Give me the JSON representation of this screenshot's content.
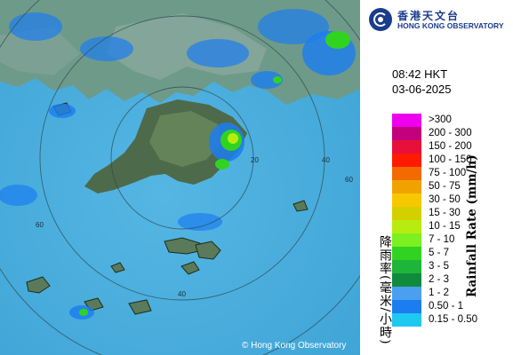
{
  "header": {
    "logo_zh": "香港天文台",
    "logo_en": "HONG KONG OBSERVATORY"
  },
  "timestamp": {
    "time": "08:42 HKT",
    "date": "03-06-2025"
  },
  "legend": {
    "title_zh": "降雨率(毫米/小時)",
    "title_en": "Rainfall Rate (mm/h)",
    "items": [
      {
        "label": ">300",
        "color": "#ee00ee"
      },
      {
        "label": "200 - 300",
        "color": "#c2007e"
      },
      {
        "label": "150 - 200",
        "color": "#e8103a"
      },
      {
        "label": "100 - 150",
        "color": "#ff1a00"
      },
      {
        "label": "75 - 100",
        "color": "#f26a00"
      },
      {
        "label": "50 - 75",
        "color": "#f0a300"
      },
      {
        "label": "30 - 50",
        "color": "#f7c800"
      },
      {
        "label": "15 - 30",
        "color": "#d4d000"
      },
      {
        "label": "10 - 15",
        "color": "#b8ec10"
      },
      {
        "label": "7 - 10",
        "color": "#7cf020"
      },
      {
        "label": "5 - 7",
        "color": "#30d420"
      },
      {
        "label": "3 - 5",
        "color": "#1fb43a"
      },
      {
        "label": "2 - 3",
        "color": "#128a3e"
      },
      {
        "label": "1 - 2",
        "color": "#4a9ff0"
      },
      {
        "label": "0.50 - 1",
        "color": "#1c7df0"
      },
      {
        "label": "0.15 - 0.50",
        "color": "#1fc8f0"
      }
    ]
  },
  "map": {
    "range_ring_labels": [
      "20",
      "40",
      "60",
      "60",
      "40"
    ],
    "copyright": "© Hong Kong Observatory"
  }
}
